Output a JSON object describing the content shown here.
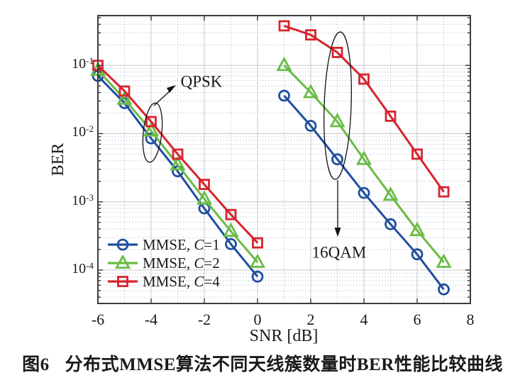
{
  "figure": {
    "caption_label": "图6",
    "caption_text": "分布式MMSE算法不同天线簇数量时BER性能比较曲线"
  },
  "chart_data": {
    "type": "line",
    "title": "",
    "xlabel": "SNR [dB]",
    "ylabel": "BER",
    "x_ticks": [
      -6,
      -4,
      -2,
      0,
      2,
      4,
      6,
      8
    ],
    "y_tick_exponents": [
      -1,
      -2,
      -3,
      -4
    ],
    "y_tick_base": "10",
    "xlim": [
      -6,
      8
    ],
    "ylim_log10": [
      -4.49,
      -0.27
    ],
    "y_scale": "log",
    "grid": "major solid, minor dotted (log minor y, odd-dB minor x)",
    "legend_position": "inside lower-left, no box",
    "colors": {
      "mmse_c1": "#1f4e9f",
      "mmse_c2": "#6abc45",
      "mmse_c4": "#d7232e",
      "grid_major": "#c9c9c9",
      "grid_minor": "#bfc8da",
      "axis_box": "#3d3d3d"
    },
    "series": [
      {
        "name": "MMSE, C=1 (QPSK)",
        "modulation": "QPSK",
        "color": "#1f4e9f",
        "marker": "circle",
        "x": [
          -6,
          -5,
          -4,
          -3,
          -2,
          -1,
          0
        ],
        "y": [
          0.07,
          0.028,
          0.0085,
          0.0028,
          0.0008,
          0.00024,
          8e-05
        ]
      },
      {
        "name": "MMSE, C=2 (QPSK)",
        "modulation": "QPSK",
        "color": "#6abc45",
        "marker": "triangle",
        "x": [
          -6,
          -5,
          -4,
          -3,
          -2,
          -1,
          0
        ],
        "y": [
          0.085,
          0.032,
          0.011,
          0.0035,
          0.0011,
          0.00037,
          0.00013
        ]
      },
      {
        "name": "MMSE, C=4 (QPSK)",
        "modulation": "QPSK",
        "color": "#d7232e",
        "marker": "square",
        "x": [
          -6,
          -5,
          -4,
          -3,
          -2,
          -1,
          0
        ],
        "y": [
          0.1,
          0.042,
          0.015,
          0.005,
          0.0018,
          0.00065,
          0.00025
        ]
      },
      {
        "name": "MMSE, C=1 (16QAM)",
        "modulation": "16QAM",
        "color": "#1f4e9f",
        "marker": "circle",
        "x": [
          1,
          2,
          3,
          4,
          5,
          6,
          7
        ],
        "y": [
          0.036,
          0.013,
          0.0042,
          0.00135,
          0.00047,
          0.00017,
          5.2e-05
        ]
      },
      {
        "name": "MMSE, C=2 (16QAM)",
        "modulation": "16QAM",
        "color": "#6abc45",
        "marker": "triangle",
        "x": [
          1,
          2,
          3,
          4,
          5,
          6,
          7
        ],
        "y": [
          0.1,
          0.04,
          0.015,
          0.0042,
          0.00125,
          0.00038,
          0.00013
        ]
      },
      {
        "name": "MMSE, C=4 (16QAM)",
        "modulation": "16QAM",
        "color": "#d7232e",
        "marker": "square",
        "x": [
          1,
          2,
          3,
          4,
          5,
          6,
          7
        ],
        "y": [
          0.38,
          0.28,
          0.155,
          0.063,
          0.018,
          0.005,
          0.0014
        ]
      }
    ],
    "legend": {
      "items": [
        {
          "prefix": "MMSE, ",
          "var": "C",
          "suffix": "=1",
          "marker": "circle",
          "color": "#1f4e9f"
        },
        {
          "prefix": "MMSE, ",
          "var": "C",
          "suffix": "=2",
          "marker": "triangle",
          "color": "#6abc45"
        },
        {
          "prefix": "MMSE, ",
          "var": "C",
          "suffix": "=4",
          "marker": "square",
          "color": "#d7232e"
        }
      ]
    },
    "annotations": [
      {
        "text": "QPSK",
        "points_to": "left curve group"
      },
      {
        "text": "16QAM",
        "points_to": "right curve group"
      }
    ]
  }
}
